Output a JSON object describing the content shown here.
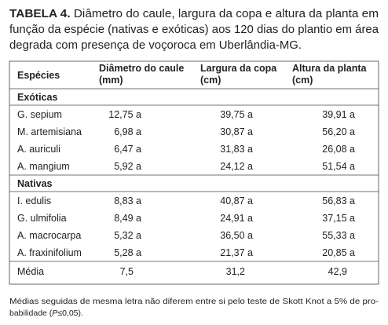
{
  "caption": {
    "label": "TABELA 4.",
    "lines": [
      "Diâmetro do caule, largura da copa e altura da planta em",
      "função da espécie (nativas e exóticas) aos 120 dias do plantio em área",
      "degrada com presença de voçoroca em Uberlândia-MG."
    ]
  },
  "table": {
    "header": {
      "species": "Espécies",
      "columns": [
        [
          "Diâmetro do caule",
          "(mm)"
        ],
        [
          "Largura da copa",
          "(cm)"
        ],
        [
          "Altura da planta",
          "(cm)"
        ]
      ]
    },
    "groups": [
      {
        "name": "Exóticas",
        "rows": [
          [
            "G. sepium",
            "12,75 a",
            "39,75 a",
            "39,91 a"
          ],
          [
            "M. artemisiana",
            "6,98 a",
            "30,87 a",
            "56,20 a"
          ],
          [
            "A. auriculi",
            "6,47 a",
            "31,83 a",
            "26,08 a"
          ],
          [
            "A. mangium",
            "5,92 a",
            "24,12 a",
            "51,54 a"
          ]
        ]
      },
      {
        "name": "Nativas",
        "rows": [
          [
            "I. edulis",
            "8,83 a",
            "40,87 a",
            "56,83 a"
          ],
          [
            "G. ulmifolia",
            "8,49 a",
            "24,91 a",
            "37,15 a"
          ],
          [
            "A. macrocarpa",
            "5,32 a",
            "36,50 a",
            "55,33 a"
          ],
          [
            "A. fraxinifolium",
            "5,28 a",
            "21,37 a",
            "20,85 a"
          ]
        ]
      }
    ],
    "mean": [
      "Média",
      "7,5",
      "31,2",
      "42,9"
    ]
  },
  "footnote": {
    "line1": "Médias seguidas de mesma letra não diferem entre si pelo teste de Skott Knot a 5% de pro-",
    "line2_start": "babilidade (",
    "line2_italic": "P",
    "line2_end": "≤0,05)."
  }
}
